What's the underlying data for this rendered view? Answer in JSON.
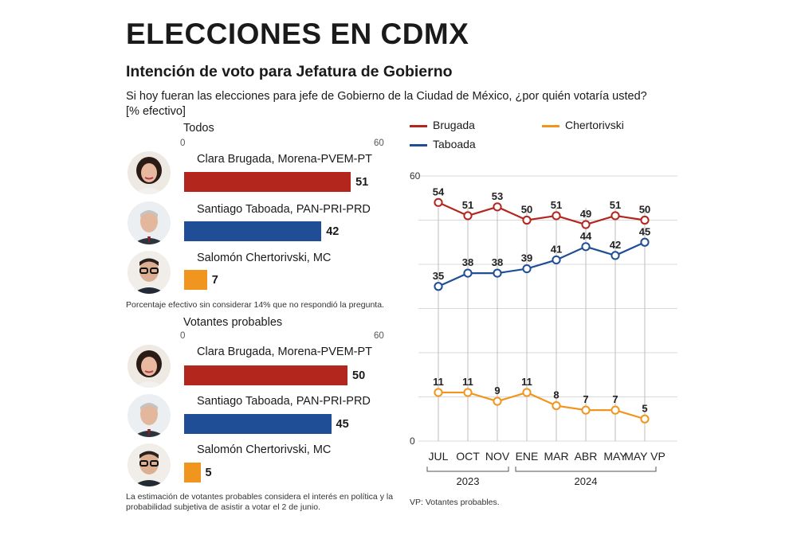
{
  "header": {
    "title": "ELECCIONES EN CDMX",
    "subtitle": "Intención de voto para Jefatura de Gobierno",
    "question": "Si hoy fueran las elecciones para jefe de Gobierno de la Ciudad de México, ¿por quién votaría usted?",
    "question_unit": "[% efectivo]"
  },
  "colors": {
    "brugada": "#b3261e",
    "taboada": "#1f4e96",
    "chertorivski": "#f0961e",
    "grid": "#d9d9d9"
  },
  "bar_sections": [
    {
      "heading": "Todos",
      "axis_min_label": "0",
      "axis_max_label": "60",
      "axis_max": 60,
      "candidates": [
        {
          "label": "Clara Brugada, Morena-PVEM-PT",
          "value": 51,
          "value_label": "51",
          "color_key": "brugada"
        },
        {
          "label": "Santiago Taboada, PAN-PRI-PRD",
          "value": 42,
          "value_label": "42",
          "color_key": "taboada"
        },
        {
          "label": "Salomón Chertorivski, MC",
          "value": 7,
          "value_label": "7",
          "color_key": "chertorivski"
        }
      ],
      "note": "Porcentaje efectivo sin considerar 14% que no respondió la pregunta."
    },
    {
      "heading": "Votantes probables",
      "axis_min_label": "0",
      "axis_max_label": "60",
      "axis_max": 60,
      "candidates": [
        {
          "label": "Clara Brugada, Morena-PVEM-PT",
          "value": 50,
          "value_label": "50",
          "color_key": "brugada"
        },
        {
          "label": "Santiago Taboada, PAN-PRI-PRD",
          "value": 45,
          "value_label": "45",
          "color_key": "taboada"
        },
        {
          "label": "Salomón Chertorivski, MC",
          "value": 5,
          "value_label": "5",
          "color_key": "chertorivski"
        }
      ],
      "note": "La estimación de votantes probables considera el interés en política y la probabilidad subjetiva de asistir a votar el 2 de junio."
    }
  ],
  "legend": {
    "brugada": "Brugada",
    "chertorivski": "Chertorivski",
    "taboada": "Taboada"
  },
  "chart_data": {
    "type": "line",
    "categories": [
      "JUL",
      "OCT",
      "NOV",
      "ENE",
      "MAR",
      "ABR",
      "MAY",
      "MAY VP"
    ],
    "year_groups": [
      {
        "label": "2023",
        "from": 0,
        "to": 2
      },
      {
        "label": "2024",
        "from": 3,
        "to": 7
      }
    ],
    "ylim": [
      0,
      60
    ],
    "y_tick_labels": [
      "0",
      "60"
    ],
    "grid": true,
    "legend_position": "top",
    "series": [
      {
        "name": "Brugada",
        "color_key": "brugada",
        "values": [
          54,
          51,
          53,
          50,
          51,
          49,
          51,
          50
        ]
      },
      {
        "name": "Taboada",
        "color_key": "taboada",
        "values": [
          35,
          38,
          38,
          39,
          41,
          44,
          42,
          45
        ]
      },
      {
        "name": "Chertorivski",
        "color_key": "chertorivski",
        "values": [
          11,
          11,
          9,
          11,
          8,
          7,
          7,
          5
        ]
      }
    ],
    "footnote": "VP: Votantes probables."
  }
}
